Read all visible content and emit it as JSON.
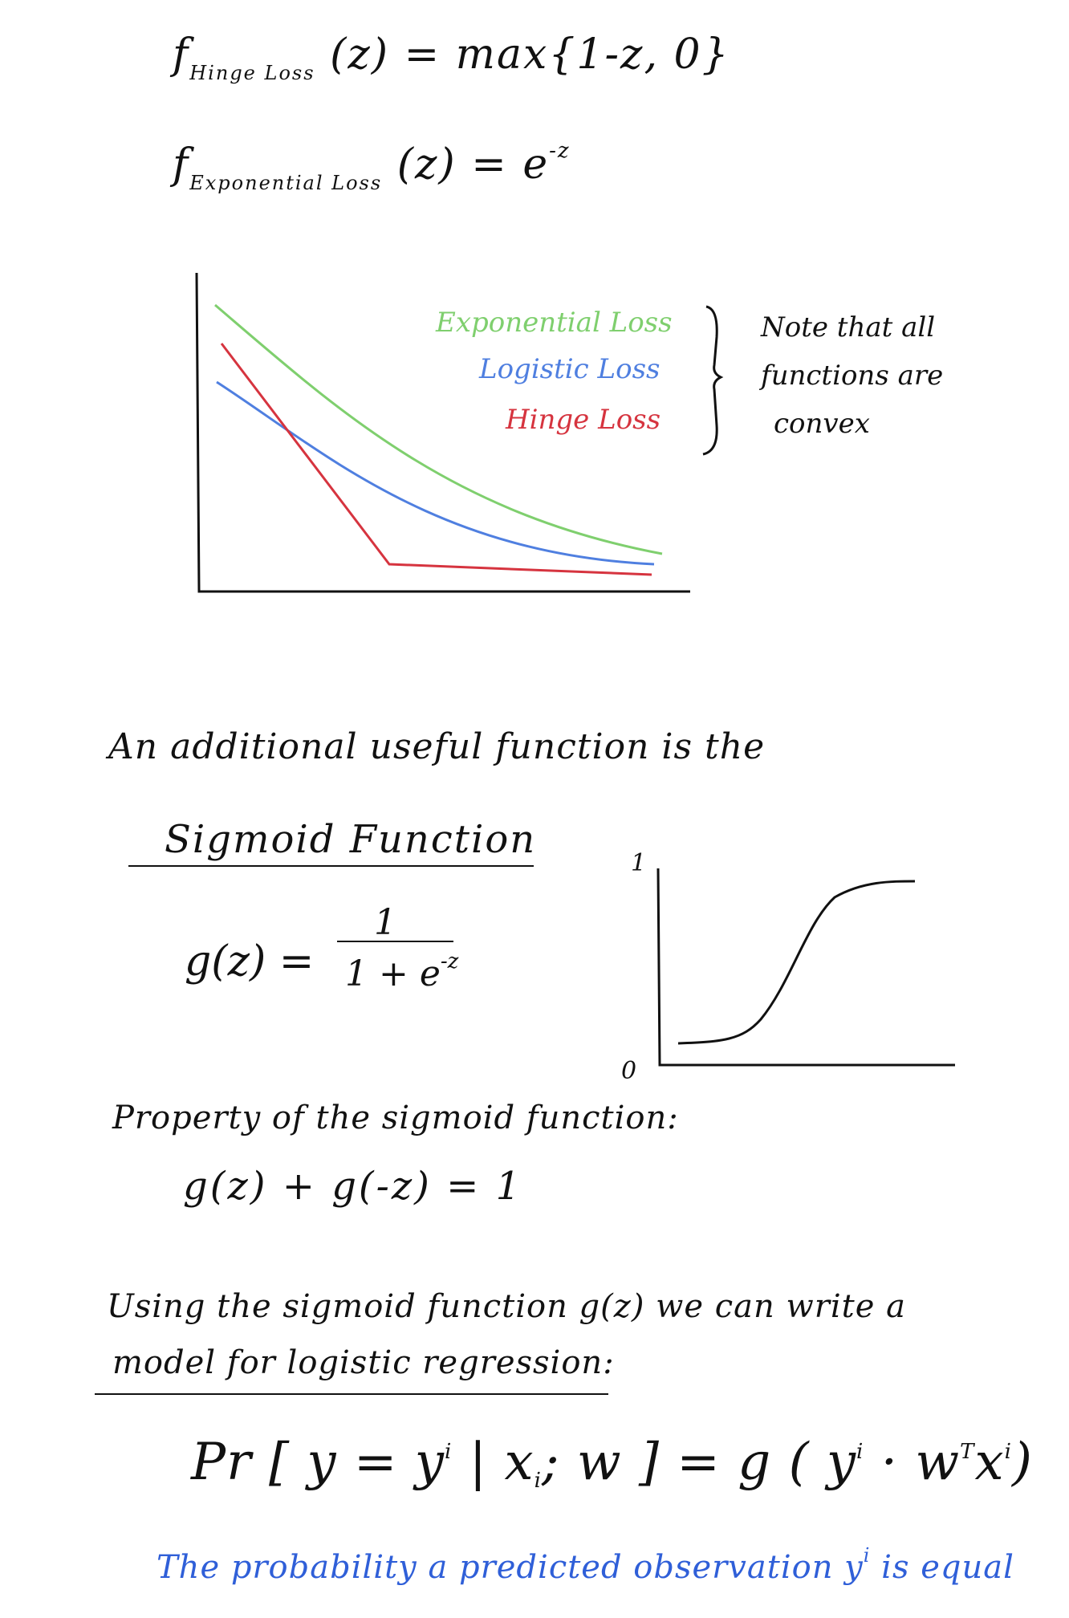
{
  "equations": {
    "hinge": {
      "f": "f",
      "sub": "Hinge Loss",
      "lhs": "(z)",
      "rhs": "= max{1-z, 0}"
    },
    "exponential": {
      "f": "f",
      "sub": "Exponential Loss",
      "lhs": "(z)",
      "rhs": "= e",
      "sup": "-z"
    }
  },
  "loss_chart": {
    "legend": [
      "Exponential Loss",
      "Logistic Loss",
      "Hinge Loss"
    ],
    "brace_note": [
      "Note that all",
      "functions are",
      "convex"
    ],
    "colors": {
      "exponential": "#7fcf6e",
      "logistic": "#4f7fe0",
      "hinge": "#d6343f"
    }
  },
  "sigmoid_section": {
    "intro": "An additional useful function is the",
    "heading": "Sigmoid Function",
    "formula_lhs": "g(z) =",
    "numerator": "1",
    "denominator_base": "1 + e",
    "denominator_sup": "-z",
    "plot_tick_top": "1",
    "plot_tick_bottom": "0"
  },
  "property": {
    "label": "Property of the sigmoid function:",
    "formula": "g(z) + g(-z) = 1"
  },
  "model": {
    "line1": "Using the sigmoid function g(z) we can write a",
    "line2": "model for logistic regression:",
    "pr_lhs": "Pr [ y = y",
    "pr_lhs_sup": "i",
    "pr_mid": " | x",
    "pr_mid_sub": "i",
    "pr_mid_rest": "; w ] = g ( y",
    "pr_rhs_sup1": "i",
    "pr_rhs": " · w",
    "pr_rhs_supT": "T",
    "pr_rhs_x": "x",
    "pr_rhs_sup2": "i",
    "pr_close": ")"
  },
  "explanation": {
    "line1_pre": "The probability a predicted observation y",
    "line1_sup": "i",
    "line1_post": " is equal",
    "color": "#2f5fd8"
  }
}
